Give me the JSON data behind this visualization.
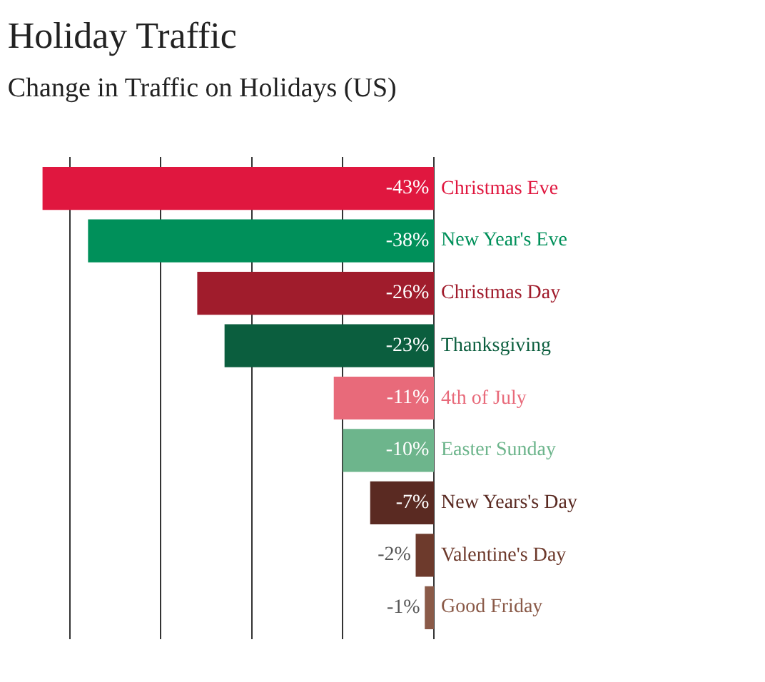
{
  "chart_data": {
    "type": "bar",
    "orientation": "horizontal",
    "title": "Holiday Traffic",
    "subtitle": "Change in Traffic on Holidays (US)",
    "categories": [
      "Christmas Eve",
      "New Year's Eve",
      "Christmas Day",
      "Thanksgiving",
      "4th of July",
      "Easter Sunday",
      "New Years's Day",
      "Valentine's Day",
      "Good Friday"
    ],
    "values": [
      -43,
      -38,
      -26,
      -23,
      -11,
      -10,
      -7,
      -2,
      -1
    ],
    "value_labels": [
      "-43%",
      "-38%",
      "-26%",
      "-23%",
      "-11%",
      "-10%",
      "-7%",
      "-2%",
      "-1%"
    ],
    "colors": [
      "#e0173f",
      "#00905a",
      "#a01c2c",
      "#0b5e3e",
      "#e86a7a",
      "#6db58c",
      "#5a2a22",
      "#6d3a2c",
      "#8a5a48"
    ],
    "xticks": [
      {
        "value": -40,
        "label": null
      },
      {
        "value": -30,
        "label": null
      },
      {
        "value": -20,
        "label": null
      },
      {
        "value": -10,
        "label": null
      },
      {
        "value": 0,
        "label": null
      }
    ],
    "grid": "x",
    "legend": false
  }
}
